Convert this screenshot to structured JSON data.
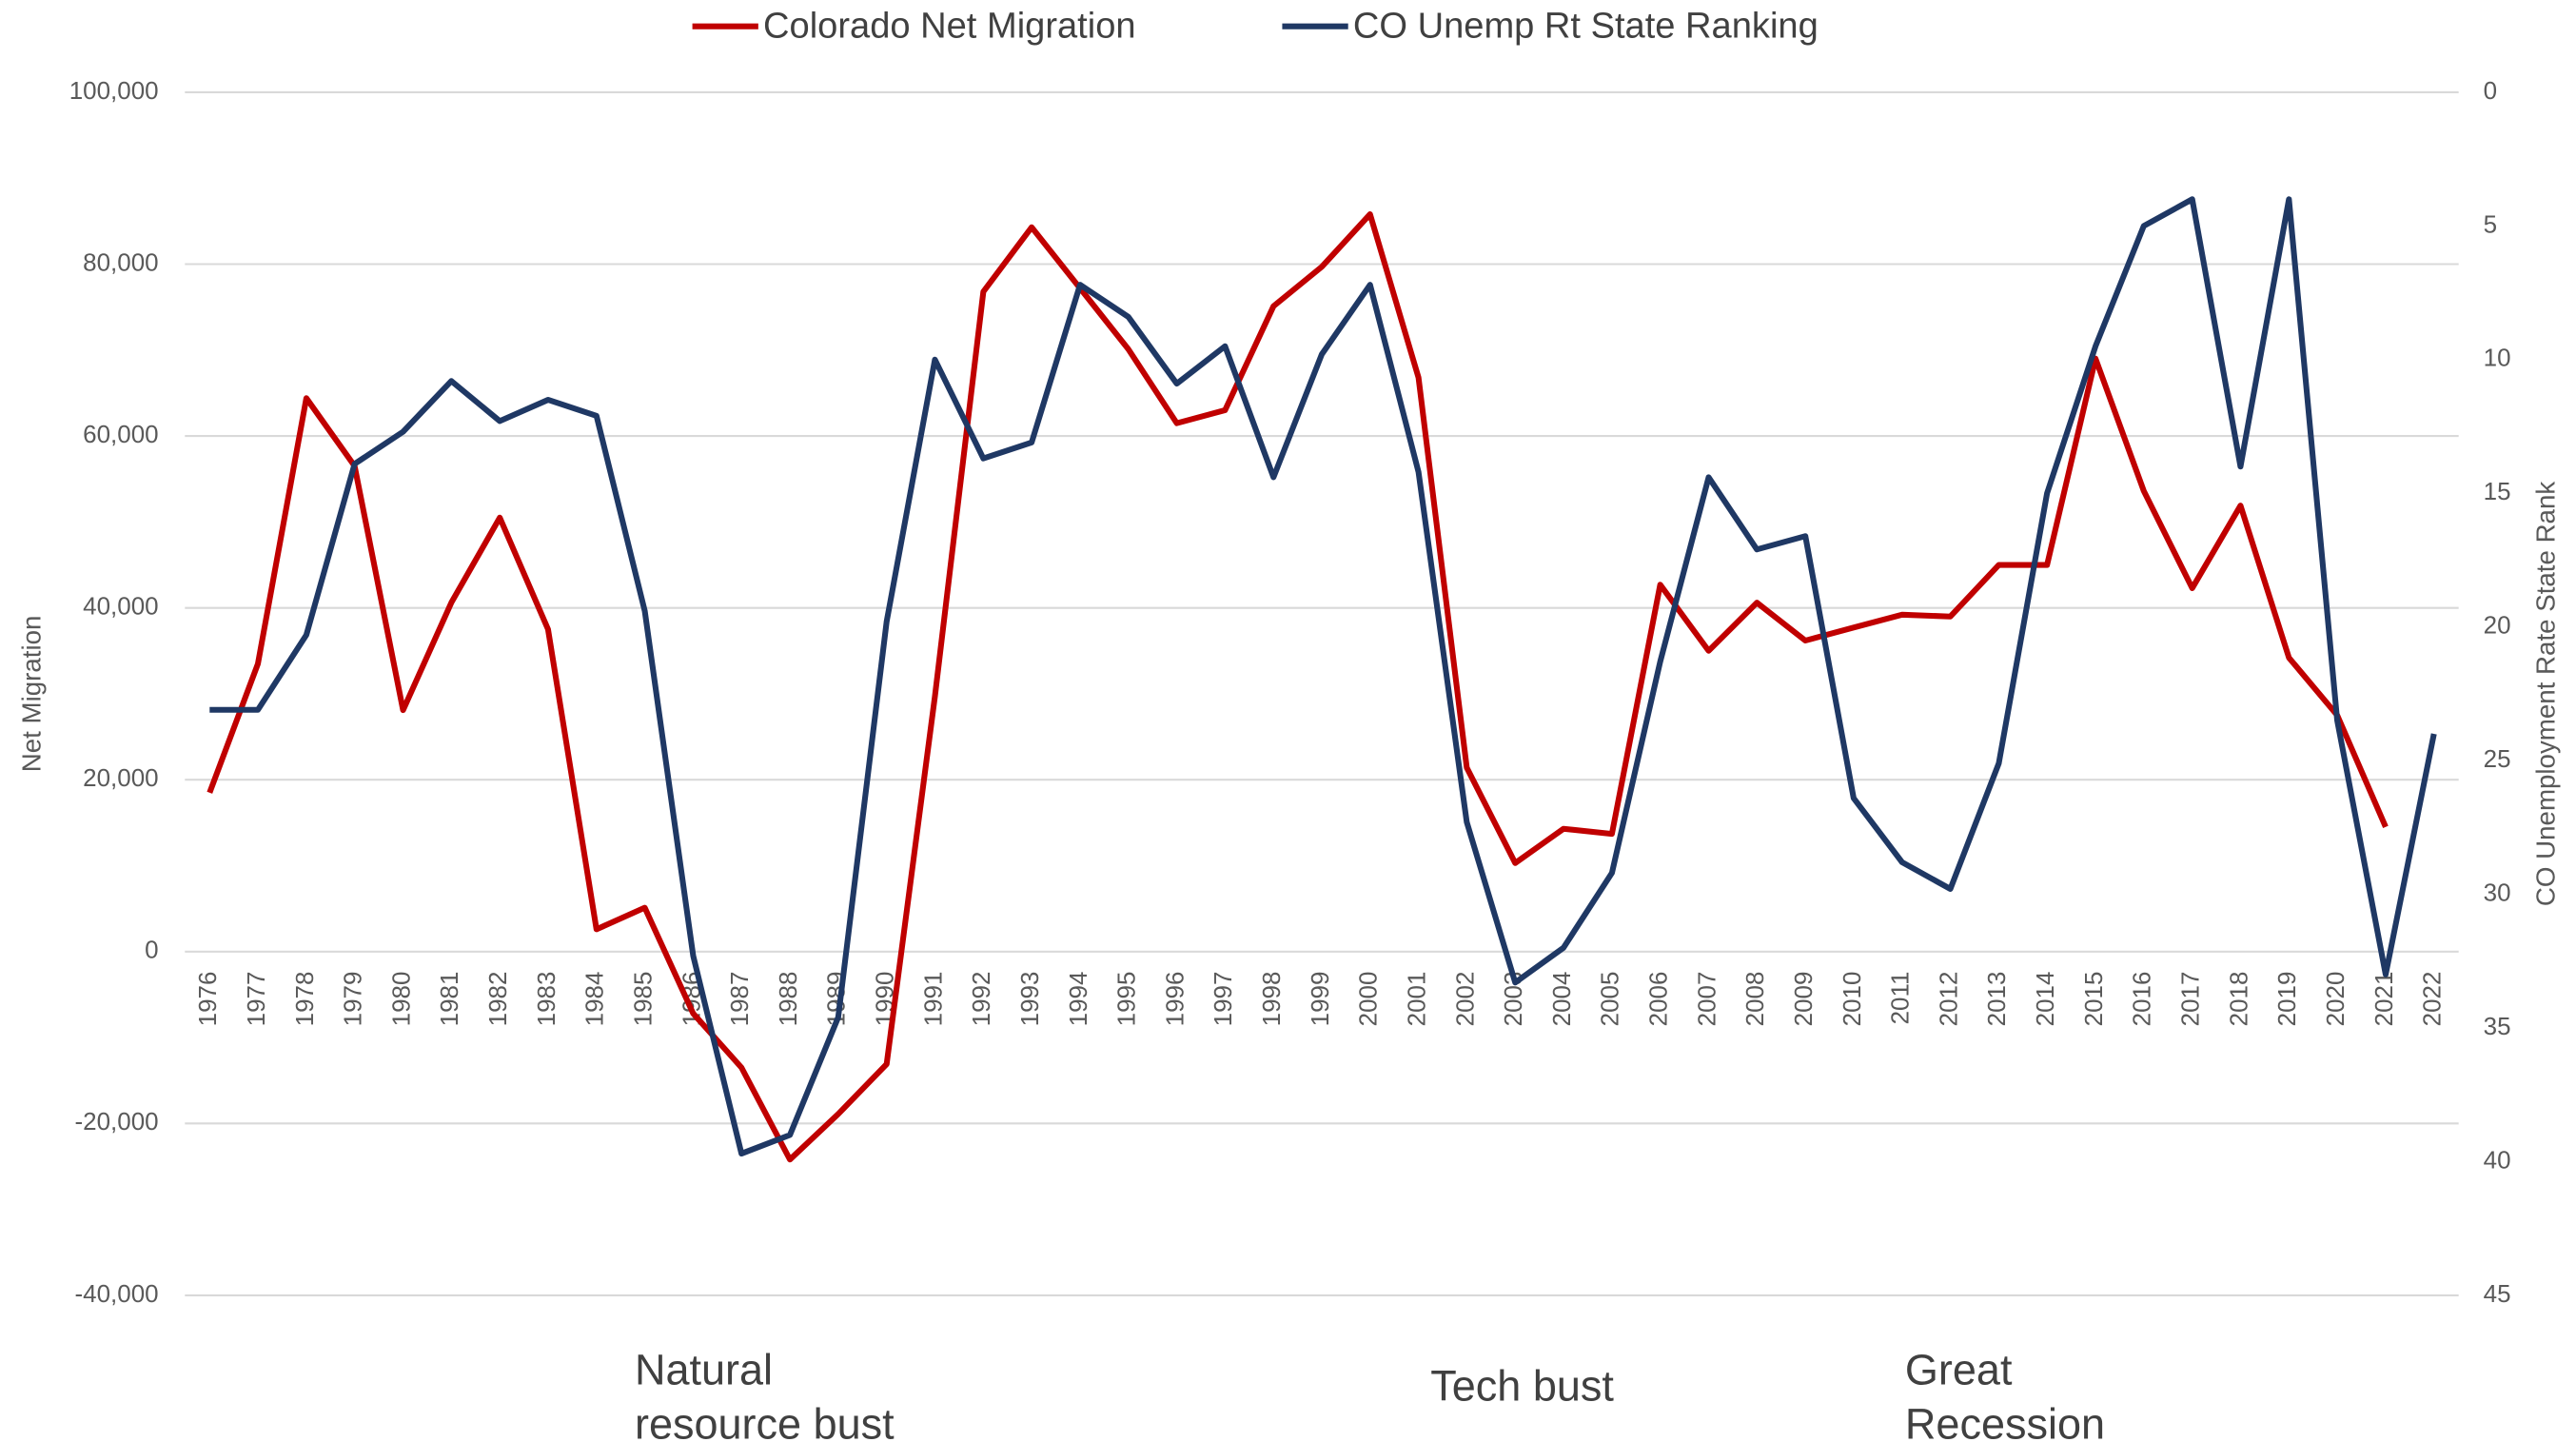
{
  "chart_data": {
    "type": "line",
    "x": [
      "1976",
      "1977",
      "1978",
      "1979",
      "1980",
      "1981",
      "1982",
      "1983",
      "1984",
      "1985",
      "1986",
      "1987",
      "1988",
      "1989",
      "1990",
      "1991",
      "1992",
      "1993",
      "1994",
      "1995",
      "1996",
      "1997",
      "1998",
      "1999",
      "2000",
      "2001",
      "2002",
      "2003",
      "2004",
      "2005",
      "2006",
      "2007",
      "2008",
      "2009",
      "2010",
      "2011",
      "2012",
      "2013",
      "2014",
      "2015",
      "2016",
      "2017",
      "2018",
      "2019",
      "2020",
      "2021",
      "2022"
    ],
    "series": [
      {
        "name": "Colorado Net Migration",
        "color": "#c00000",
        "axis": "y",
        "values": [
          18500,
          33500,
          64400,
          56500,
          28100,
          40600,
          50500,
          37500,
          2600,
          5100,
          -7200,
          -13500,
          -24200,
          -18900,
          -13100,
          29700,
          76800,
          84300,
          77200,
          70100,
          61500,
          63000,
          75100,
          79700,
          85800,
          66800,
          21400,
          10300,
          14300,
          13700,
          42700,
          35000,
          40600,
          36200,
          37700,
          39200,
          39000,
          45000,
          45000,
          69000,
          53600,
          42300,
          51900,
          34200,
          27500,
          14500,
          null
        ]
      },
      {
        "name": "CO Unemp Rt State Ranking",
        "color": "#1f3864",
        "axis": "y2",
        "values": [
          23.1,
          23.1,
          20.3,
          13.9,
          12.7,
          10.8,
          12.3,
          11.5,
          12.1,
          19.4,
          32.3,
          39.7,
          39.0,
          34.6,
          19.8,
          10.0,
          13.7,
          13.1,
          7.2,
          8.4,
          10.9,
          9.5,
          14.4,
          9.8,
          7.2,
          14.2,
          27.3,
          33.3,
          32.0,
          29.2,
          21.3,
          14.4,
          17.1,
          16.6,
          26.4,
          28.8,
          29.8,
          25.1,
          15.0,
          9.5,
          5.0,
          4.0,
          14.0,
          4.0,
          23.5,
          33.0,
          24.0
        ]
      }
    ],
    "ylabel": "Net Migration",
    "y2label": "CO Unemployment Rate State Rank",
    "ylim": [
      -40000,
      100000
    ],
    "yticks": [
      {
        "value": -40000,
        "label": "-40,000"
      },
      {
        "value": -20000,
        "label": "-20,000"
      },
      0,
      {
        "value": 20000,
        "label": "20,000"
      },
      {
        "value": 40000,
        "label": "40,000"
      },
      {
        "value": 60000,
        "label": "60,000"
      },
      {
        "value": 80000,
        "label": "80,000"
      },
      {
        "value": 100000,
        "label": "100,000"
      }
    ],
    "y2lim": [
      45,
      0
    ],
    "y2ticks": [
      0,
      5,
      10,
      15,
      20,
      25,
      30,
      35,
      40,
      45
    ],
    "grid": true,
    "legend": "top",
    "annotations": [
      {
        "text": [
          "Natural",
          "resource bust"
        ]
      },
      {
        "text": [
          "Tech bust"
        ]
      },
      {
        "text": [
          "Great",
          "Recession"
        ]
      }
    ]
  }
}
